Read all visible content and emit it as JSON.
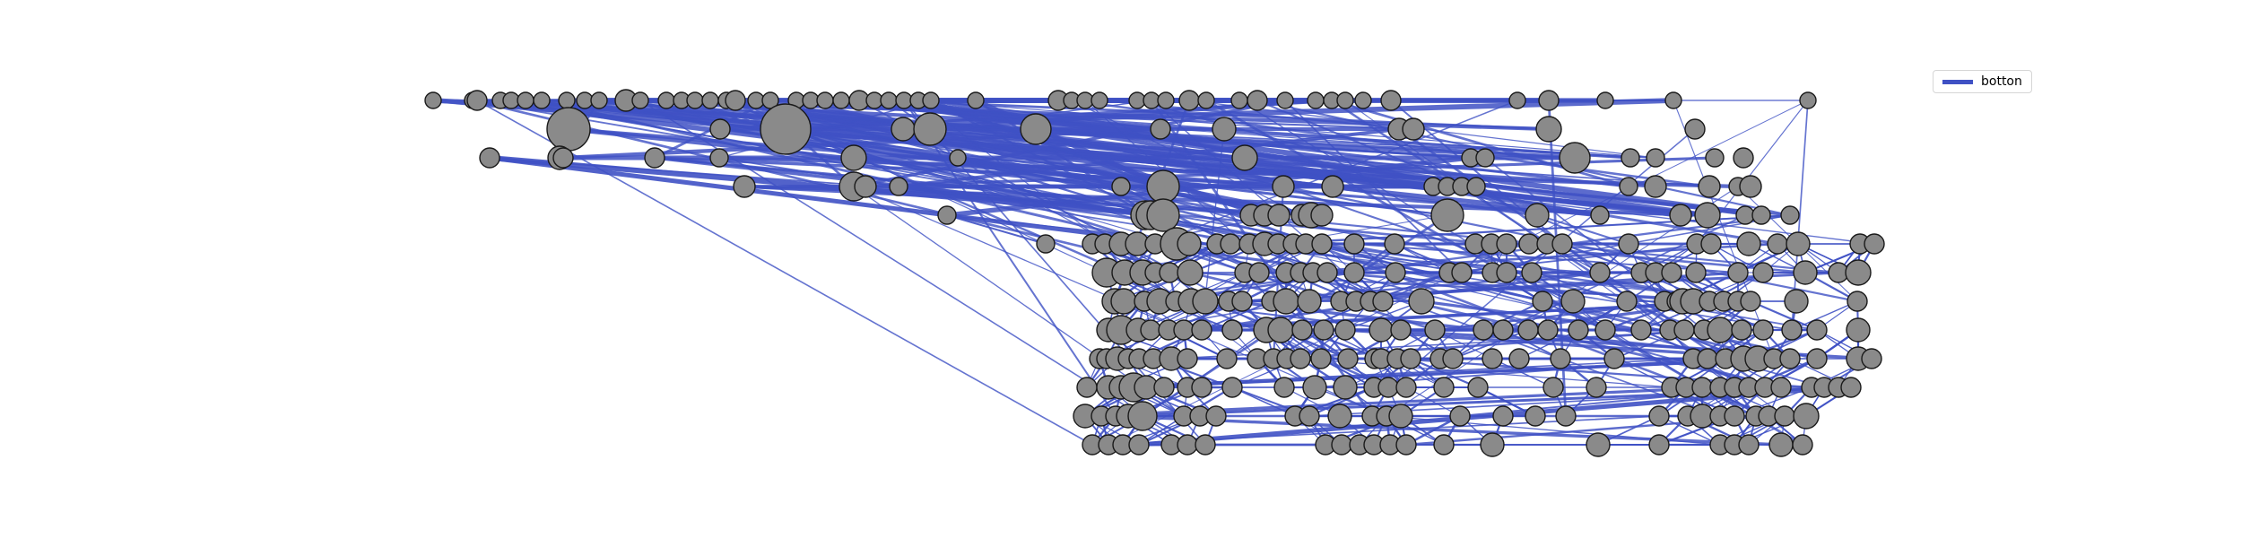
{
  "legend": {
    "label": "botton",
    "color": "#3f51c4"
  },
  "style": {
    "node_fill": "#8a8a8a",
    "node_stroke": "#1a1a1a",
    "edge_color": "#3f51c4"
  }
}
